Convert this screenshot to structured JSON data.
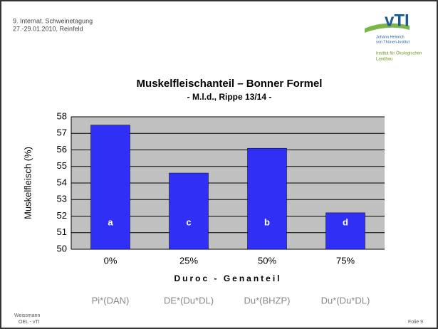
{
  "header": {
    "event": "9. Internat. Schweinetagung",
    "date": "27.-29.01.2010, Reinfeld",
    "logo": "vTI",
    "institute": [
      "Johann Heinrich",
      "von Thünen-Institut"
    ],
    "department": [
      "Institut für Ökologischen",
      "Landbau"
    ]
  },
  "footer": {
    "author": [
      "Weissmann",
      "OEL - vTI"
    ],
    "slide": "Folie 9"
  },
  "chart_data": {
    "type": "bar",
    "title": "Muskelfleischanteil – Bonner Formel",
    "subtitle": "- M.l.d., Rippe 13/14 -",
    "categories": [
      "0%",
      "25%",
      "50%",
      "75%"
    ],
    "values": [
      57.5,
      54.6,
      56.1,
      52.2
    ],
    "bar_labels": [
      "a",
      "c",
      "b",
      "d"
    ],
    "groups": [
      "Pi*(DAN)",
      "DE*(Du*DL)",
      "Du*(BHZP)",
      "Du*(Du*DL)"
    ],
    "color": "#2f2ff5",
    "ylim": [
      50,
      58
    ],
    "yticks": [
      50,
      51,
      52,
      53,
      54,
      55,
      56,
      57,
      58
    ],
    "grid": true,
    "ylabel": "Muskelfleisch (%)",
    "xlabel": "Duroc - Genanteil"
  }
}
